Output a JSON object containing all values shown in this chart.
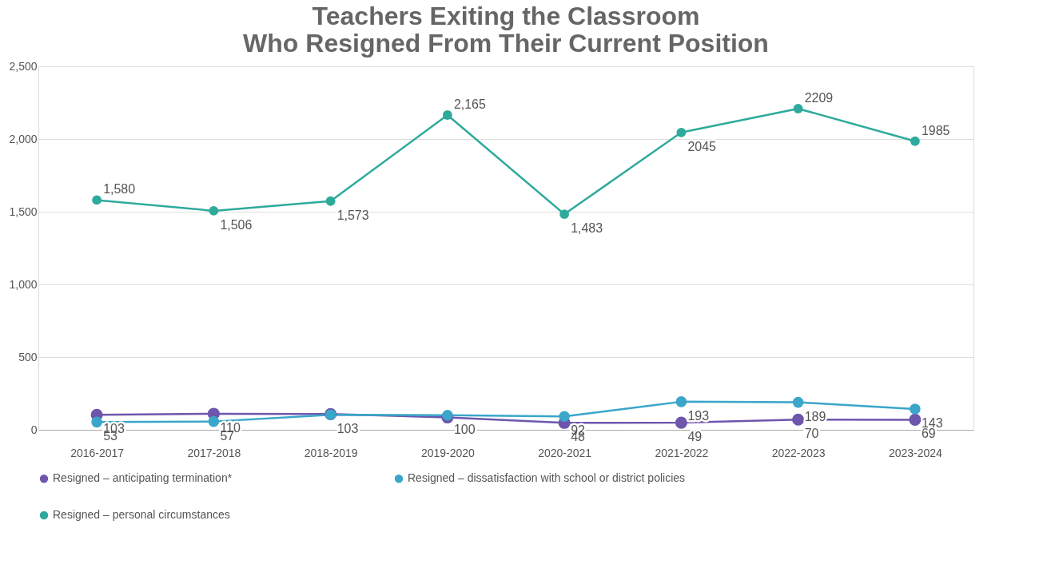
{
  "chart_data": {
    "type": "line",
    "title": "Teachers Exiting the Classroom\nWho Resigned From Their Current Position",
    "categories": [
      "2016-2017",
      "2017-2018",
      "2018-2019",
      "2019-2020",
      "2020-2021",
      "2021-2022",
      "2022-2023",
      "2023-2024"
    ],
    "series": [
      {
        "name": "Resigned – anticipating termination*",
        "color": "#6e56ad",
        "values": [
          103,
          110,
          108,
          85,
          48,
          49,
          70,
          69
        ],
        "value_labels": [
          "103",
          "110",
          null,
          null,
          "48",
          "49",
          "70",
          "69"
        ]
      },
      {
        "name": "Resigned – dissatisfaction with school or district policies",
        "color": "#3aa6c9",
        "values": [
          53,
          57,
          103,
          100,
          92,
          193,
          189,
          143
        ],
        "value_labels": [
          "53",
          "57",
          "103",
          "100",
          "92",
          "193",
          "189",
          "143"
        ]
      },
      {
        "name": "Resigned – personal circumstances",
        "color": "#2eaa9c",
        "values": [
          1580,
          1506,
          1573,
          2165,
          1483,
          2045,
          2209,
          1985
        ],
        "value_labels": [
          "1,580",
          "1,506",
          "1,573",
          "2,165",
          "1,483",
          "2045",
          "2209",
          "1985"
        ]
      }
    ],
    "ylim": [
      0,
      2500
    ],
    "yticks": [
      0,
      500,
      {
        "value": 1000,
        "label": "1,000"
      },
      {
        "value": 1500,
        "label": "1,500"
      },
      {
        "value": 2000,
        "label": "2,000"
      },
      {
        "value": 2500,
        "label": "2,500"
      }
    ],
    "grid": "y",
    "legend": "bottom",
    "marker": "circle",
    "line_style": "solid"
  }
}
